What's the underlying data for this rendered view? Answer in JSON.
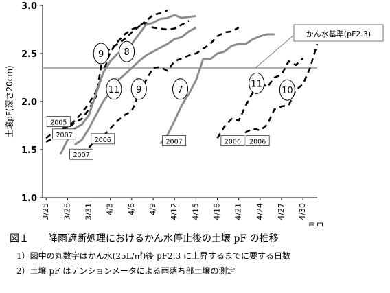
{
  "figure": {
    "caption": "図１　　降雨遮断処理におけるかん水停止後の土壌 pF の推移",
    "notes": [
      "1）図中の丸数字はかん水(25L/㎡)後 pF2.3 に上昇するまでに要する日数",
      "2）土壌 pF はテンションメータによる雨落ち部土壌の測定"
    ]
  },
  "chart_data": {
    "type": "line",
    "ylabel": "土壌pF(深さ20cm)",
    "xlabel": "月日",
    "ylim": [
      1.0,
      3.0
    ],
    "yticks": [
      "1.0",
      "1.5",
      "2.0",
      "2.5",
      "3.0"
    ],
    "xlim": [
      -0.5,
      38
    ],
    "xticks": [
      {
        "x": 0,
        "label": "3/25"
      },
      {
        "x": 3,
        "label": "3/28"
      },
      {
        "x": 6,
        "label": "3/31"
      },
      {
        "x": 9,
        "label": "4/3"
      },
      {
        "x": 12,
        "label": "4/6"
      },
      {
        "x": 15,
        "label": "4/9"
      },
      {
        "x": 18,
        "label": "4/12"
      },
      {
        "x": 21,
        "label": "4/15"
      },
      {
        "x": 24,
        "label": "4/18"
      },
      {
        "x": 27,
        "label": "4/21"
      },
      {
        "x": 30,
        "label": "4/24"
      },
      {
        "x": 33,
        "label": "4/27"
      },
      {
        "x": 36,
        "label": "4/30"
      }
    ],
    "reference_line": {
      "value": 2.35,
      "label": "かん水基準(pF2.3)"
    },
    "colors": {
      "gray": "#8c8c8c",
      "black": "#000000",
      "ref": "#808080"
    },
    "series": [
      {
        "style": "dashed",
        "color": "black",
        "points": [
          [
            0,
            1.58
          ],
          [
            1,
            1.62
          ],
          [
            2,
            1.65
          ],
          [
            3,
            1.72
          ],
          [
            4,
            1.78
          ],
          [
            5,
            1.82
          ],
          [
            6,
            1.92
          ],
          [
            7,
            2.05
          ],
          [
            8,
            2.5
          ],
          [
            9,
            2.55
          ],
          [
            10,
            2.6
          ],
          [
            11,
            2.65
          ],
          [
            12,
            2.72
          ],
          [
            13,
            2.78
          ],
          [
            14,
            2.82
          ],
          [
            15,
            2.77
          ],
          [
            16,
            2.76
          ],
          [
            17,
            2.75
          ],
          [
            18,
            2.76
          ],
          [
            19,
            2.8
          ],
          [
            20,
            2.84
          ]
        ]
      },
      {
        "style": "dashed",
        "color": "black",
        "points": [
          [
            0,
            1.62
          ],
          [
            1,
            1.68
          ],
          [
            2,
            1.72
          ],
          [
            3,
            1.73
          ],
          [
            4,
            1.8
          ],
          [
            5,
            1.88
          ],
          [
            6,
            1.98
          ],
          [
            7,
            2.1
          ],
          [
            8,
            2.3
          ],
          [
            9,
            2.52
          ],
          [
            10,
            2.62
          ],
          [
            11,
            2.7
          ],
          [
            12,
            2.75
          ],
          [
            13,
            2.78
          ],
          [
            14,
            2.84
          ],
          [
            15,
            2.9
          ],
          [
            16,
            2.92
          ],
          [
            17,
            2.95
          ]
        ]
      },
      {
        "style": "solid",
        "color": "gray",
        "points": [
          [
            2,
            1.45
          ],
          [
            3,
            1.6
          ],
          [
            4,
            1.72
          ],
          [
            5,
            1.76
          ],
          [
            6,
            1.86
          ],
          [
            7,
            2.08
          ],
          [
            8,
            2.3
          ],
          [
            9,
            2.42
          ],
          [
            10,
            2.5
          ],
          [
            11,
            2.55
          ],
          [
            12,
            2.6
          ],
          [
            13,
            2.7
          ],
          [
            14,
            2.8
          ],
          [
            15,
            2.82
          ],
          [
            16,
            2.86
          ],
          [
            17,
            2.87
          ],
          [
            18,
            2.9
          ],
          [
            19,
            2.87
          ],
          [
            20,
            2.88
          ],
          [
            21,
            2.89
          ]
        ]
      },
      {
        "style": "solid",
        "color": "gray",
        "points": [
          [
            4,
            1.55
          ],
          [
            5,
            1.6
          ],
          [
            6,
            1.72
          ],
          [
            7,
            1.86
          ],
          [
            8,
            2.0
          ],
          [
            9,
            2.1
          ],
          [
            10,
            2.22
          ],
          [
            11,
            2.28
          ],
          [
            12,
            2.35
          ],
          [
            13,
            2.42
          ],
          [
            14,
            2.48
          ],
          [
            15,
            2.52
          ],
          [
            16,
            2.56
          ],
          [
            17,
            2.6
          ],
          [
            18,
            2.65
          ],
          [
            19,
            2.67
          ],
          [
            20,
            2.73
          ],
          [
            21,
            2.77
          ]
        ]
      },
      {
        "style": "dashed",
        "color": "black",
        "points": [
          [
            6,
            1.52
          ],
          [
            7,
            1.6
          ],
          [
            8,
            1.64
          ],
          [
            9,
            1.72
          ],
          [
            10,
            1.8
          ],
          [
            11,
            1.86
          ],
          [
            12,
            1.9
          ],
          [
            13,
            2.08
          ],
          [
            14,
            2.22
          ],
          [
            15,
            2.35
          ],
          [
            16,
            2.36
          ],
          [
            17,
            2.32
          ],
          [
            18,
            2.42
          ],
          [
            19,
            2.45
          ],
          [
            20,
            2.48
          ],
          [
            21,
            2.5
          ],
          [
            22,
            2.55
          ],
          [
            23,
            2.6
          ],
          [
            24,
            2.68
          ],
          [
            25,
            2.72
          ],
          [
            26,
            2.73
          ],
          [
            27,
            2.77
          ]
        ]
      },
      {
        "style": "solid",
        "color": "gray",
        "points": [
          [
            16,
            1.56
          ],
          [
            17,
            1.65
          ],
          [
            18,
            1.8
          ],
          [
            19,
            1.96
          ],
          [
            20,
            2.08
          ],
          [
            21,
            2.22
          ],
          [
            22,
            2.44
          ],
          [
            23,
            2.44
          ],
          [
            24,
            2.5
          ],
          [
            25,
            2.52
          ],
          [
            26,
            2.58
          ],
          [
            27,
            2.6
          ],
          [
            28,
            2.6
          ],
          [
            29,
            2.65
          ],
          [
            30,
            2.68
          ],
          [
            31,
            2.7
          ],
          [
            32,
            2.7
          ]
        ]
      },
      {
        "style": "dashed",
        "color": "black",
        "points": [
          [
            24,
            1.62
          ],
          [
            25,
            1.74
          ],
          [
            26,
            1.82
          ],
          [
            27,
            1.8
          ],
          [
            28,
            1.96
          ],
          [
            29,
            2.1
          ],
          [
            30,
            2.2
          ],
          [
            31,
            2.15
          ],
          [
            32,
            2.25
          ],
          [
            33,
            2.28
          ],
          [
            34,
            2.42
          ],
          [
            35,
            2.38
          ],
          [
            36,
            2.45
          ]
        ]
      },
      {
        "style": "dashed",
        "color": "black",
        "points": [
          [
            27,
            1.6
          ],
          [
            28,
            1.68
          ],
          [
            29,
            1.72
          ],
          [
            30,
            1.7
          ],
          [
            31,
            1.76
          ],
          [
            32,
            1.92
          ],
          [
            33,
            1.95
          ],
          [
            34,
            1.96
          ],
          [
            35,
            2.12
          ],
          [
            36,
            2.18
          ],
          [
            37,
            2.35
          ],
          [
            38,
            2.6
          ]
        ]
      }
    ],
    "year_labels": [
      {
        "text": "2005",
        "x": 0.3,
        "y": 1.76
      },
      {
        "text": "2007",
        "x": 1.1,
        "y": 1.63
      },
      {
        "text": "2007",
        "x": 3.5,
        "y": 1.42
      },
      {
        "text": "2006",
        "x": 6.5,
        "y": 1.58
      },
      {
        "text": "2007",
        "x": 16.5,
        "y": 1.56
      },
      {
        "text": "2006",
        "x": 24.7,
        "y": 1.56
      },
      {
        "text": "2006",
        "x": 28.2,
        "y": 1.56
      }
    ],
    "day_labels": [
      {
        "text": "9",
        "x": 7.7,
        "y": 2.5
      },
      {
        "text": "8",
        "x": 11.3,
        "y": 2.52
      },
      {
        "text": "11",
        "x": 9.5,
        "y": 2.13
      },
      {
        "text": "9",
        "x": 13.0,
        "y": 2.13
      },
      {
        "text": "7",
        "x": 18.8,
        "y": 2.13
      },
      {
        "text": "11",
        "x": 29.5,
        "y": 2.19
      },
      {
        "text": "10",
        "x": 33.8,
        "y": 2.12
      }
    ]
  }
}
